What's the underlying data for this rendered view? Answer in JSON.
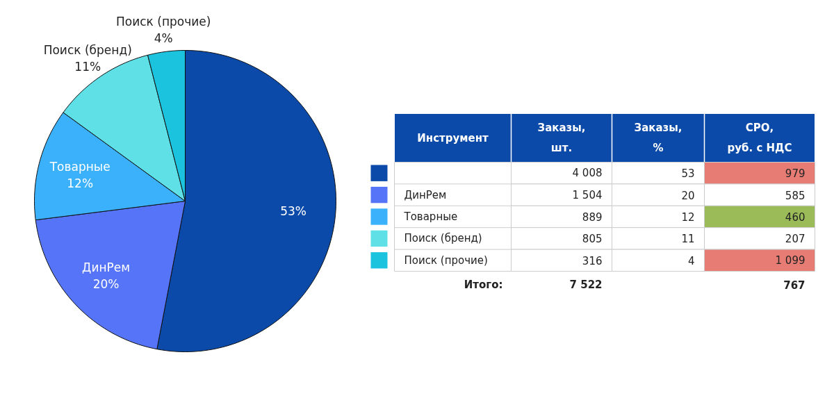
{
  "chart_data": [
    {
      "type": "pie",
      "categories": [
        null,
        "ДинРем",
        "Товарные",
        "Поиск (бренд)",
        "Поиск (прочие)"
      ],
      "values": [
        53,
        20,
        12,
        11,
        4
      ],
      "value_labels": [
        "53%",
        "20%",
        "12%",
        "11%",
        "4%"
      ],
      "colors": [
        "#0b4aa8",
        "#5674f7",
        "#3bb0fb",
        "#5ee0e6",
        "#1bc3de"
      ],
      "legend": "right"
    },
    {
      "type": "other",
      "ylabel": "Инструмент",
      "categories": [
        "Заказы, шт.",
        "Заказы, %",
        "СРО, руб. с НДС"
      ],
      "y_categories": [
        null,
        "ДинРем",
        "Товарные",
        "Поиск (бренд)",
        "Поиск (прочие)"
      ],
      "cell_labels": [
        [
          "4 008",
          "53",
          "979"
        ],
        [
          "1 504",
          "20",
          "585"
        ],
        [
          "889",
          "12",
          "460"
        ],
        [
          "805",
          "11",
          "207"
        ],
        [
          "316",
          "4",
          "1 099"
        ]
      ],
      "colors": [
        [
          "#ffffff",
          "#ffffff",
          "#e67c73"
        ],
        [
          "#ffffff",
          "#ffffff",
          "#ffffff"
        ],
        [
          "#ffffff",
          "#ffffff",
          "#9bbb59"
        ],
        [
          "#ffffff",
          "#ffffff",
          "#ffffff"
        ],
        [
          "#ffffff",
          "#ffffff",
          "#e67c73"
        ]
      ],
      "totals": [
        "7 522",
        null,
        "767"
      ],
      "annotations": [
        "Итого:"
      ]
    }
  ]
}
